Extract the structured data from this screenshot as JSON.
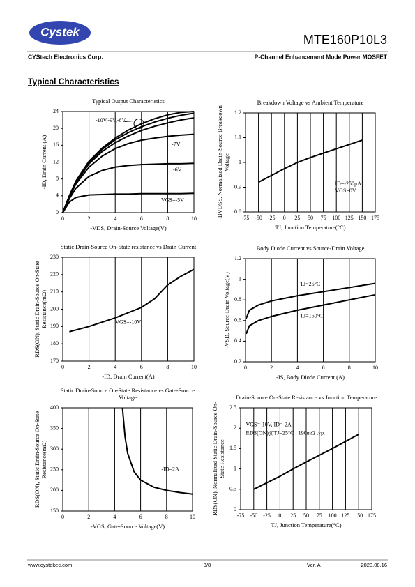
{
  "header": {
    "logo": "Cystek",
    "part_number": "MTE160P10L3",
    "company": "CYStech Electronics Corp.",
    "description": "P-Channel Enhancement Mode Power MOSFET"
  },
  "section_title": "Typical Characteristics",
  "chart_data": [
    {
      "type": "line",
      "title": [
        "Typical Output Characteristics"
      ],
      "xlabel": "-VDS, Drain-Source Voltage(V)",
      "ylabel": [
        "-ID, Drain Current (A)"
      ],
      "x": [
        0,
        0.5,
        1,
        2,
        3,
        4,
        5,
        6,
        7,
        8,
        9,
        10
      ],
      "xlim": [
        0,
        10
      ],
      "xticks": [
        0,
        2,
        4,
        6,
        8,
        10
      ],
      "ylim": [
        0,
        24
      ],
      "yticks": [
        0,
        4,
        8,
        12,
        16,
        20,
        24
      ],
      "grid": "x",
      "series": [
        {
          "color": "#000000",
          "values": [
            0,
            4,
            7.5,
            12.2,
            15.3,
            17.7,
            19.6,
            21.1,
            22.3,
            23.2,
            23.8,
            24
          ]
        },
        {
          "color": "#000000",
          "values": [
            0,
            4,
            7.4,
            12,
            15,
            17.3,
            19,
            20.4,
            21.5,
            22.4,
            23.1,
            23.6
          ]
        },
        {
          "color": "#000000",
          "values": [
            0,
            3.9,
            7.2,
            11.6,
            14.5,
            16.6,
            18.2,
            19.5,
            20.5,
            21.3,
            22,
            22.5
          ]
        },
        {
          "color": "#000000",
          "values": [
            0,
            3.7,
            6.8,
            10.8,
            13.4,
            15.2,
            16.4,
            17.2,
            17.7,
            18.1,
            18.4,
            18.6
          ]
        },
        {
          "color": "#000000",
          "values": [
            0,
            3.3,
            5.8,
            8.6,
            10,
            10.8,
            11.2,
            11.4,
            11.5,
            11.6,
            11.6,
            11.7
          ]
        },
        {
          "color": "#000000",
          "values": [
            0,
            2.5,
            3.6,
            4.2,
            4.3,
            4.4,
            4.4,
            4.5,
            4.5,
            4.5,
            4.5,
            4.6
          ]
        }
      ],
      "annotations": [
        "-10V,-9V,-8V",
        "-7V",
        "-6V",
        "VGS=-5V"
      ]
    },
    {
      "type": "line",
      "title": [
        "Breakdown Voltage vs Ambient Temperature"
      ],
      "xlabel": "TJ, Junction Temperature(°C)",
      "ylabel": [
        "-BVDSS, Normalized Drain-Source Breakdown",
        "Voltage"
      ],
      "x": [
        -50,
        0,
        25,
        50,
        100,
        150
      ],
      "xlim": [
        -75,
        175
      ],
      "xticks": [
        -75,
        -50,
        -25,
        0,
        25,
        50,
        75,
        100,
        125,
        150,
        175
      ],
      "ylim": [
        0.8,
        1.2
      ],
      "yticks": [
        0.8,
        0.9,
        1,
        1.1,
        1.2
      ],
      "grid": "x",
      "series": [
        {
          "color": "#000000",
          "values": [
            0.92,
            0.975,
            1,
            1.02,
            1.055,
            1.09
          ]
        }
      ],
      "annotations": [
        "ID=-250μA",
        "VGS=0V"
      ]
    },
    {
      "type": "line",
      "title": [
        "Static Drain-Source On-State resistance vs Drain Current"
      ],
      "xlabel": "-ID, Drain Current(A)",
      "ylabel": [
        "RDS(ON), Static Drain-Source On-State",
        "Resistance(mΩ)"
      ],
      "x": [
        0.5,
        2,
        4,
        6,
        7,
        8,
        9,
        10
      ],
      "xlim": [
        0,
        10
      ],
      "xticks": [
        0,
        2,
        4,
        6,
        8,
        10
      ],
      "ylim": [
        170,
        230
      ],
      "yticks": [
        170,
        180,
        190,
        200,
        210,
        220,
        230
      ],
      "grid": "x",
      "series": [
        {
          "color": "#000000",
          "values": [
            187,
            190,
            195,
            201,
            206,
            214,
            219,
            223
          ]
        }
      ],
      "annotations": [
        "VGS=-10V"
      ]
    },
    {
      "type": "line",
      "title": [
        "Body Diode Current vs Source-Drain Voltage"
      ],
      "xlabel": "-IS, Body Diode Current (A)",
      "ylabel": [
        "-VSD, Source-Drain Voltage(V)"
      ],
      "x": [
        0.05,
        0.3,
        1,
        2,
        4,
        6,
        8,
        10
      ],
      "xlim": [
        0,
        10
      ],
      "xticks": [
        0,
        2,
        4,
        6,
        8,
        10
      ],
      "ylim": [
        0.2,
        1.2
      ],
      "yticks": [
        0.2,
        0.4,
        0.6,
        0.8,
        1,
        1.2
      ],
      "grid": "x",
      "series": [
        {
          "color": "#000000",
          "values": [
            0.62,
            0.7,
            0.75,
            0.79,
            0.84,
            0.88,
            0.92,
            0.96
          ]
        },
        {
          "color": "#000000",
          "values": [
            0.47,
            0.55,
            0.6,
            0.64,
            0.7,
            0.75,
            0.8,
            0.85
          ]
        }
      ],
      "annotations": [
        "TJ=25°C",
        "TJ=150°C"
      ]
    },
    {
      "type": "line",
      "title": [
        "Static Drain-Source On-State Resistance vs Gate-Source",
        "Voltage"
      ],
      "xlabel": "-VGS, Gate-Source Voltage(V)",
      "ylabel": [
        "RDS(ON), Static Drain-Source On-State",
        "Resistance(mΩ)"
      ],
      "x": [
        4.6,
        4.8,
        5,
        5.5,
        6,
        7,
        8,
        9,
        10
      ],
      "xlim": [
        0,
        10
      ],
      "xticks": [
        0,
        2,
        4,
        6,
        8,
        10
      ],
      "ylim": [
        150,
        400
      ],
      "yticks": [
        150,
        200,
        250,
        300,
        350,
        400
      ],
      "grid": "x",
      "series": [
        {
          "color": "#000000",
          "values": [
            400,
            330,
            290,
            245,
            225,
            208,
            200,
            195,
            191
          ]
        }
      ],
      "annotations": [
        "-ID=2A"
      ]
    },
    {
      "type": "line",
      "title": [
        "Drain-Source On-State Resistance vs Junction Temperature"
      ],
      "xlabel": "TJ, Junction Temperature(°C)",
      "ylabel": [
        "RDS(ON), Normalized Static Drain-Source On-",
        "State Resistance"
      ],
      "x": [
        -50,
        0,
        25,
        50,
        100,
        150
      ],
      "xlim": [
        -75,
        175
      ],
      "xticks": [
        -75,
        -50,
        -25,
        0,
        25,
        50,
        75,
        100,
        125,
        150,
        175
      ],
      "ylim": [
        0,
        2.5
      ],
      "yticks": [
        0,
        0.5,
        1,
        1.5,
        2,
        2.5
      ],
      "grid": "x",
      "series": [
        {
          "color": "#000000",
          "values": [
            0.5,
            0.82,
            1,
            1.17,
            1.5,
            1.85
          ]
        }
      ],
      "annotations": [
        "VGS=-10V, ID=-2A",
        "RDS(ON)@TJ=25°C : 190mΩ typ."
      ]
    }
  ],
  "footer": {
    "website": "www.cystekec.com",
    "page": "3/8",
    "version": "Ver. A",
    "date": "2023.08.16"
  }
}
